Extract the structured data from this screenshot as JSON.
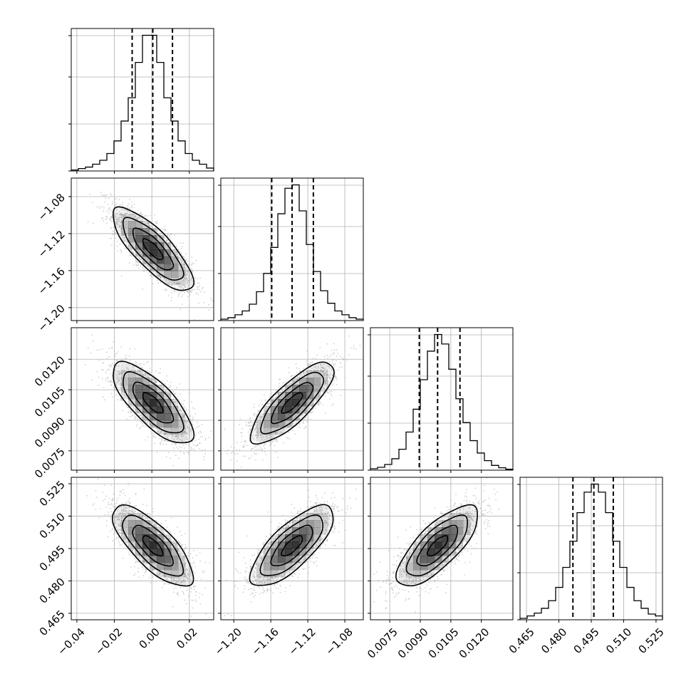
{
  "chart_data": {
    "type": "corner",
    "parameters": [
      {
        "range": [
          -0.043,
          0.033
        ],
        "ticks": [
          -0.04,
          -0.02,
          0.0,
          0.02
        ],
        "tick_labels": [
          "−0.04",
          "−0.02",
          "0.00",
          "0.02"
        ],
        "quantiles": [
          -0.0105,
          0.0005,
          0.011
        ],
        "histogram": {
          "bin_edges": [
            -0.043,
            -0.0392,
            -0.0354,
            -0.0316,
            -0.0278,
            -0.024,
            -0.0202,
            -0.0164,
            -0.0126,
            -0.0088,
            -0.005,
            -0.0012,
            0.0026,
            0.0064,
            0.0102,
            0.014,
            0.0178,
            0.0216,
            0.0254,
            0.0292,
            0.033
          ],
          "counts": [
            2,
            5,
            8,
            14,
            22,
            36,
            62,
            103,
            151,
            224,
            280,
            280,
            224,
            151,
            103,
            62,
            36,
            22,
            14,
            6
          ]
        }
      },
      {
        "range": [
          -1.214,
          -1.06
        ],
        "ticks": [
          -1.2,
          -1.16,
          -1.12,
          -1.08
        ],
        "tick_labels": [
          "−1.20",
          "−1.16",
          "−1.12",
          "−1.08"
        ],
        "quantiles": [
          -1.159,
          -1.137,
          -1.114
        ],
        "histogram": {
          "bin_edges": [
            -1.214,
            -1.2063,
            -1.1986,
            -1.1909,
            -1.1832,
            -1.1755,
            -1.1678,
            -1.1601,
            -1.1524,
            -1.1447,
            -1.137,
            -1.1293,
            -1.1216,
            -1.1139,
            -1.1062,
            -1.0985,
            -1.0908,
            -1.0831,
            -1.0754,
            -1.0677,
            -1.06
          ],
          "counts": [
            3,
            6,
            12,
            20,
            34,
            60,
            98,
            152,
            222,
            275,
            282,
            228,
            158,
            102,
            62,
            36,
            20,
            12,
            6,
            3
          ]
        }
      },
      {
        "range": [
          0.00655,
          0.01355
        ],
        "ticks": [
          0.0075,
          0.009,
          0.0105,
          0.012
        ],
        "tick_labels": [
          "0.0075",
          "0.0090",
          "0.0105",
          "0.0120"
        ],
        "quantiles": [
          0.00895,
          0.00985,
          0.01095
        ],
        "histogram": {
          "bin_edges": [
            0.00655,
            0.0069,
            0.00725,
            0.0076,
            0.00795,
            0.0083,
            0.00865,
            0.009,
            0.00935,
            0.0097,
            0.01005,
            0.0104,
            0.01075,
            0.0111,
            0.01145,
            0.0118,
            0.01215,
            0.0125,
            0.01285,
            0.0132,
            0.01355
          ],
          "counts": [
            3,
            6,
            12,
            24,
            44,
            80,
            128,
            190,
            250,
            285,
            265,
            212,
            150,
            100,
            62,
            36,
            20,
            10,
            5,
            2
          ]
        }
      },
      {
        "range": [
          0.462,
          0.528
        ],
        "ticks": [
          0.465,
          0.48,
          0.495,
          0.51,
          0.525
        ],
        "tick_labels": [
          "0.465",
          "0.480",
          "0.495",
          "0.510",
          "0.525"
        ],
        "quantiles": [
          0.4865,
          0.4962,
          0.5052
        ],
        "histogram": {
          "bin_edges": [
            0.462,
            0.4653,
            0.4686,
            0.4719,
            0.4752,
            0.4785,
            0.4818,
            0.4851,
            0.4884,
            0.4917,
            0.495,
            0.4983,
            0.5016,
            0.5049,
            0.5082,
            0.5115,
            0.5148,
            0.5181,
            0.5214,
            0.5247,
            0.528
          ],
          "counts": [
            3,
            8,
            14,
            24,
            40,
            68,
            110,
            165,
            225,
            268,
            285,
            268,
            225,
            165,
            110,
            68,
            40,
            24,
            12,
            8
          ]
        }
      }
    ],
    "correlations": [
      [
        1.0,
        -0.8,
        -0.75,
        -0.75
      ],
      [
        -0.8,
        1.0,
        0.8,
        0.75
      ],
      [
        -0.75,
        0.8,
        1.0,
        0.75
      ],
      [
        -0.75,
        0.75,
        0.75,
        1.0
      ]
    ],
    "contour_levels_sigma": [
      0.5,
      1.0,
      1.5,
      2.0
    ],
    "grid": true,
    "colors": {
      "line": "#000000",
      "scatter": "#bdbdbd",
      "grid": "#b0b0b0",
      "density": "#000000"
    }
  }
}
